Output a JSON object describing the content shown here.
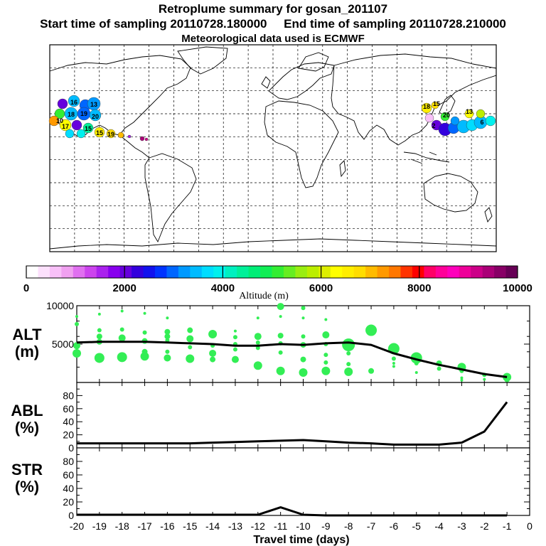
{
  "header": {
    "title": "Retroplume summary for gosan_201107",
    "sampling_line": "Start time of sampling 20110728.180000     End time of sampling 20110728.210000",
    "met_line": "Meteorological data used is ECMWF"
  },
  "map": {
    "plume_labels_asia": [
      "18",
      "15",
      "20",
      "13",
      "6",
      "2"
    ],
    "plume_labels_na": [
      "16",
      "13",
      "19",
      "20",
      "18",
      "17",
      "10",
      "15",
      "15",
      "19"
    ]
  },
  "colorbar": {
    "label": "Altitude (m)",
    "min": 0,
    "max": 10000,
    "ticks": [
      "0",
      "2000",
      "4000",
      "6000",
      "8000",
      "10000"
    ],
    "colors": [
      "#ffffff",
      "#fce0fc",
      "#f8c0f8",
      "#f0a0f0",
      "#e070f0",
      "#cc44ee",
      "#aa22ee",
      "#8800ee",
      "#6600dd",
      "#3300dd",
      "#1111ee",
      "#0033ff",
      "#0066ff",
      "#0099ff",
      "#00bbff",
      "#00ddff",
      "#00f0ee",
      "#00f0c0",
      "#00f099",
      "#00ee77",
      "#11ee55",
      "#33ee33",
      "#66ee22",
      "#99ee11",
      "#bbee00",
      "#ddee00",
      "#ffff00",
      "#ffee00",
      "#ffdd00",
      "#ffbb00",
      "#ff9900",
      "#ff7700",
      "#ff3300",
      "#ff0000",
      "#ff0066",
      "#ff0099",
      "#ff00bb",
      "#ee0099",
      "#cc0088",
      "#aa0077",
      "#880066",
      "#660055"
    ]
  },
  "chart_data": [
    {
      "type": "line",
      "panel": "ALT",
      "ylabel": "ALT (m)",
      "ylabel_line1": "ALT",
      "ylabel_line2": "(m)",
      "ylim": [
        0,
        10000
      ],
      "yticks": [
        "5000",
        "10000"
      ],
      "x": [
        -20,
        -19,
        -18,
        -17,
        -16,
        -15,
        -14,
        -13,
        -12,
        -11,
        -10,
        -9,
        -8,
        -7,
        -6,
        -5,
        -4,
        -3,
        -2,
        -1
      ],
      "series": [
        {
          "name": "median altitude",
          "values": [
            5200,
            5300,
            5300,
            5300,
            5200,
            5100,
            5000,
            4800,
            4800,
            5000,
            4900,
            5100,
            5200,
            4900,
            3800,
            3000,
            2300,
            1700,
            1100,
            700
          ]
        }
      ],
      "scatter_color": "#33ee55",
      "scatter": [
        {
          "x": -20,
          "y": 8600,
          "s": 2
        },
        {
          "x": -20,
          "y": 7600,
          "s": 3
        },
        {
          "x": -20,
          "y": 4800,
          "s": 5
        },
        {
          "x": -20,
          "y": 3800,
          "s": 6
        },
        {
          "x": -19,
          "y": 8900,
          "s": 2
        },
        {
          "x": -19,
          "y": 6800,
          "s": 3
        },
        {
          "x": -19,
          "y": 6000,
          "s": 4
        },
        {
          "x": -19,
          "y": 5300,
          "s": 4
        },
        {
          "x": -19,
          "y": 3200,
          "s": 7
        },
        {
          "x": -18,
          "y": 9300,
          "s": 2
        },
        {
          "x": -18,
          "y": 6900,
          "s": 3
        },
        {
          "x": -18,
          "y": 5800,
          "s": 5
        },
        {
          "x": -18,
          "y": 3300,
          "s": 7
        },
        {
          "x": -17,
          "y": 9000,
          "s": 2
        },
        {
          "x": -17,
          "y": 6500,
          "s": 3
        },
        {
          "x": -17,
          "y": 5400,
          "s": 4
        },
        {
          "x": -17,
          "y": 4000,
          "s": 4
        },
        {
          "x": -17,
          "y": 3400,
          "s": 6
        },
        {
          "x": -16,
          "y": 8400,
          "s": 2
        },
        {
          "x": -16,
          "y": 6600,
          "s": 4
        },
        {
          "x": -16,
          "y": 6000,
          "s": 4
        },
        {
          "x": -16,
          "y": 5500,
          "s": 3
        },
        {
          "x": -16,
          "y": 4000,
          "s": 3
        },
        {
          "x": -16,
          "y": 3200,
          "s": 5
        },
        {
          "x": -15,
          "y": 6800,
          "s": 4
        },
        {
          "x": -15,
          "y": 5700,
          "s": 5
        },
        {
          "x": -15,
          "y": 4600,
          "s": 3
        },
        {
          "x": -15,
          "y": 3100,
          "s": 6
        },
        {
          "x": -14,
          "y": 6300,
          "s": 6
        },
        {
          "x": -14,
          "y": 4800,
          "s": 3
        },
        {
          "x": -14,
          "y": 3800,
          "s": 5
        },
        {
          "x": -14,
          "y": 3000,
          "s": 4
        },
        {
          "x": -13,
          "y": 6700,
          "s": 2
        },
        {
          "x": -13,
          "y": 5900,
          "s": 3
        },
        {
          "x": -13,
          "y": 5000,
          "s": 3
        },
        {
          "x": -13,
          "y": 4300,
          "s": 3
        },
        {
          "x": -13,
          "y": 3000,
          "s": 5
        },
        {
          "x": -12,
          "y": 8400,
          "s": 2
        },
        {
          "x": -12,
          "y": 6000,
          "s": 5
        },
        {
          "x": -12,
          "y": 5200,
          "s": 3
        },
        {
          "x": -12,
          "y": 4500,
          "s": 3
        },
        {
          "x": -12,
          "y": 2200,
          "s": 6
        },
        {
          "x": -11,
          "y": 9900,
          "s": 5
        },
        {
          "x": -11,
          "y": 8600,
          "s": 2
        },
        {
          "x": -11,
          "y": 6100,
          "s": 4
        },
        {
          "x": -11,
          "y": 5100,
          "s": 3
        },
        {
          "x": -11,
          "y": 3900,
          "s": 3
        },
        {
          "x": -11,
          "y": 1500,
          "s": 6
        },
        {
          "x": -10,
          "y": 9700,
          "s": 3
        },
        {
          "x": -10,
          "y": 8400,
          "s": 2
        },
        {
          "x": -10,
          "y": 6000,
          "s": 3
        },
        {
          "x": -10,
          "y": 4900,
          "s": 4
        },
        {
          "x": -10,
          "y": 3000,
          "s": 4
        },
        {
          "x": -10,
          "y": 1300,
          "s": 6
        },
        {
          "x": -9,
          "y": 8200,
          "s": 2
        },
        {
          "x": -9,
          "y": 6200,
          "s": 5
        },
        {
          "x": -9,
          "y": 5000,
          "s": 3
        },
        {
          "x": -9,
          "y": 3600,
          "s": 3
        },
        {
          "x": -9,
          "y": 2600,
          "s": 3
        },
        {
          "x": -9,
          "y": 1500,
          "s": 6
        },
        {
          "x": -8,
          "y": 4900,
          "s": 9
        },
        {
          "x": -8,
          "y": 3800,
          "s": 3
        },
        {
          "x": -8,
          "y": 2400,
          "s": 3
        },
        {
          "x": -8,
          "y": 1400,
          "s": 6
        },
        {
          "x": -7,
          "y": 6800,
          "s": 8
        },
        {
          "x": -7,
          "y": 1500,
          "s": 4
        },
        {
          "x": -6,
          "y": 4400,
          "s": 8
        },
        {
          "x": -6,
          "y": 3100,
          "s": 3
        },
        {
          "x": -6,
          "y": 2500,
          "s": 2
        },
        {
          "x": -6,
          "y": 2100,
          "s": 2
        },
        {
          "x": -5,
          "y": 3200,
          "s": 8
        },
        {
          "x": -5,
          "y": 2500,
          "s": 3
        },
        {
          "x": -5,
          "y": 1300,
          "s": 2
        },
        {
          "x": -4,
          "y": 2500,
          "s": 4
        },
        {
          "x": -4,
          "y": 1800,
          "s": 3
        },
        {
          "x": -3,
          "y": 2000,
          "s": 6
        },
        {
          "x": -3,
          "y": 1500,
          "s": 3
        },
        {
          "x": -3,
          "y": 600,
          "s": 2
        },
        {
          "x": -3,
          "y": 300,
          "s": 2
        },
        {
          "x": -2,
          "y": 1000,
          "s": 3
        },
        {
          "x": -2,
          "y": 400,
          "s": 2
        },
        {
          "x": -1,
          "y": 700,
          "s": 6
        },
        {
          "x": -1,
          "y": 400,
          "s": 4
        }
      ]
    },
    {
      "type": "line",
      "panel": "ABL",
      "ylabel": "ABL (%)",
      "ylabel_line1": "ABL",
      "ylabel_line2": "(%)",
      "ylim": [
        0,
        100
      ],
      "yticks": [
        "0",
        "20",
        "40",
        "60",
        "80"
      ],
      "x": [
        -20,
        -19,
        -18,
        -17,
        -16,
        -15,
        -14,
        -13,
        -12,
        -11,
        -10,
        -9,
        -8,
        -7,
        -6,
        -5,
        -4,
        -3,
        -2,
        -1
      ],
      "series": [
        {
          "name": "ABL fraction",
          "values": [
            7,
            7,
            7,
            7,
            7,
            7,
            8,
            9,
            10,
            11,
            12,
            10,
            8,
            7,
            5,
            5,
            5,
            8,
            25,
            70
          ]
        }
      ]
    },
    {
      "type": "line",
      "panel": "STR",
      "ylabel": "STR (%)",
      "ylabel_line1": "STR",
      "ylabel_line2": "(%)",
      "ylim": [
        0,
        100
      ],
      "yticks": [
        "0",
        "20",
        "40",
        "60",
        "80"
      ],
      "x": [
        -20,
        -19,
        -18,
        -17,
        -16,
        -15,
        -14,
        -13,
        -12,
        -11,
        -10,
        -9,
        -8,
        -7,
        -6,
        -5,
        -4,
        -3,
        -2,
        -1
      ],
      "series": [
        {
          "name": "stratosphere fraction",
          "values": [
            1,
            1,
            1,
            1,
            1,
            1,
            1,
            1,
            1,
            12,
            1,
            0,
            0,
            0,
            0,
            0,
            0,
            0,
            0,
            0
          ]
        }
      ]
    }
  ],
  "xaxis": {
    "label": "Travel time (days)",
    "ticks": [
      "-20",
      "-19",
      "-18",
      "-17",
      "-16",
      "-15",
      "-14",
      "-13",
      "-12",
      "-11",
      "-10",
      "-9",
      "-8",
      "-7",
      "-6",
      "-5",
      "-4",
      "-3",
      "-2",
      "-1",
      "0"
    ]
  }
}
